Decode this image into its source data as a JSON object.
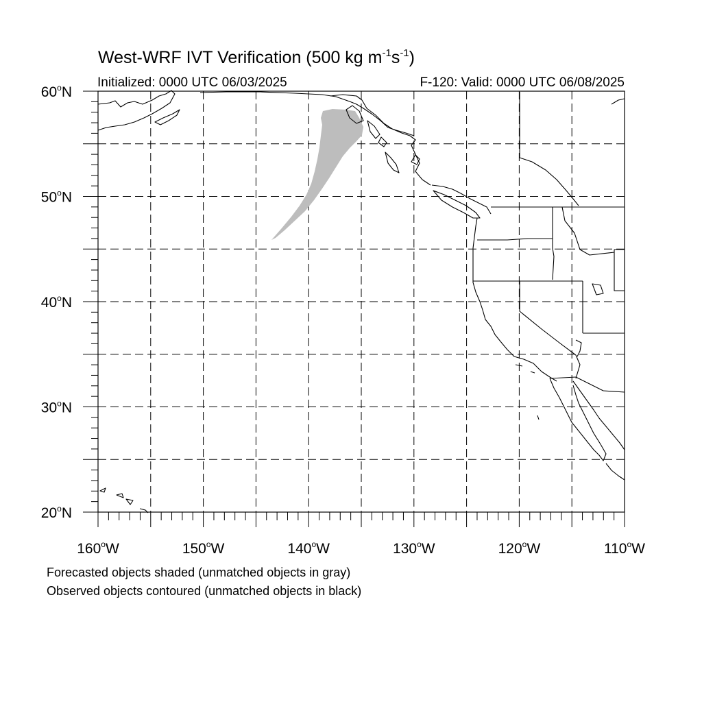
{
  "title": {
    "main": "West-WRF IVT Verification (500 kg m",
    "exp1": "-1",
    "mid": "s",
    "exp2": "-1",
    "close": ")"
  },
  "initialized": "Initialized: 0000 UTC 06/03/2025",
  "valid": "F-120: Valid: 0000 UTC 06/08/2025",
  "lat_labels": [
    {
      "deg": "60",
      "suffix": "N",
      "lat": 60
    },
    {
      "deg": "50",
      "suffix": "N",
      "lat": 50
    },
    {
      "deg": "40",
      "suffix": "N",
      "lat": 40
    },
    {
      "deg": "30",
      "suffix": "N",
      "lat": 30
    },
    {
      "deg": "20",
      "suffix": "N",
      "lat": 20
    }
  ],
  "lon_labels": [
    {
      "deg": "160",
      "suffix": "W",
      "lon": -160
    },
    {
      "deg": "150",
      "suffix": "W",
      "lon": -150
    },
    {
      "deg": "140",
      "suffix": "W",
      "lon": -140
    },
    {
      "deg": "130",
      "suffix": "W",
      "lon": -130
    },
    {
      "deg": "120",
      "suffix": "W",
      "lon": -120
    },
    {
      "deg": "110",
      "suffix": "W",
      "lon": -110
    }
  ],
  "map_extent": {
    "lon_min": -160,
    "lon_max": -110,
    "lat_min": 20,
    "lat_max": 60
  },
  "grid_spacing_deg": 5,
  "colors": {
    "forecast_unmatched": "#bdbdbd",
    "observed_unmatched": "#000000",
    "coast": "#000000"
  },
  "footnotes": [
    "Forecasted objects shaded (unmatched objects in gray)",
    "Observed objects contoured (unmatched objects in black)"
  ]
}
